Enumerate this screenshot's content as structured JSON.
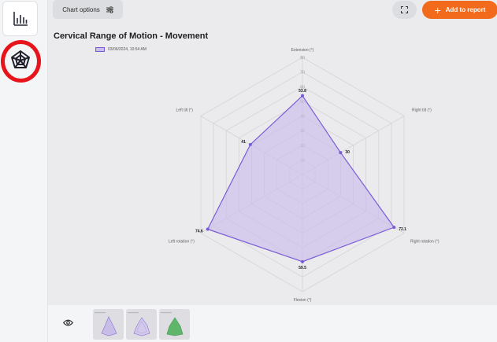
{
  "sidebar": {
    "items": [
      {
        "icon": "bar-chart-icon",
        "active": false
      },
      {
        "icon": "radar-chart-icon",
        "active": true
      }
    ]
  },
  "toolbar": {
    "chart_options_label": "Chart options",
    "fullscreen_icon": "fullscreen-icon",
    "add_to_report_label": "Add to report"
  },
  "chart": {
    "title": "Cervical Range of Motion - Movement",
    "legend_label": "03/06/2024, 10:54 AM"
  },
  "colors": {
    "accent_orange": "#f26a1b",
    "series_stroke": "#7a5bd6",
    "series_fill": "#c9bde9",
    "highlight_ring": "#e8141b"
  },
  "chart_data": {
    "type": "radar",
    "title": "Cervical Range of Motion - Movement",
    "axes": [
      "Extension (°)",
      "Right tilt (°)",
      "Right rotation (°)",
      "Flexion (°)",
      "Left rotation (°)",
      "Left tilt (°)"
    ],
    "rmax": 80,
    "ticks": [
      10,
      20,
      30,
      40,
      50,
      60,
      70,
      80
    ],
    "series": [
      {
        "name": "03/06/2024, 10:54 AM",
        "values": [
          53.8,
          30,
          72.1,
          59.5,
          74.6,
          41
        ],
        "labels": [
          "53.8",
          "30",
          "72.1",
          "59.5",
          "74.6",
          "41"
        ]
      }
    ]
  },
  "bottom_bar": {
    "eye_icon": "eye-icon",
    "thumbnails": [
      "thumbnail-radar-1",
      "thumbnail-radar-2",
      "thumbnail-radar-3"
    ]
  }
}
